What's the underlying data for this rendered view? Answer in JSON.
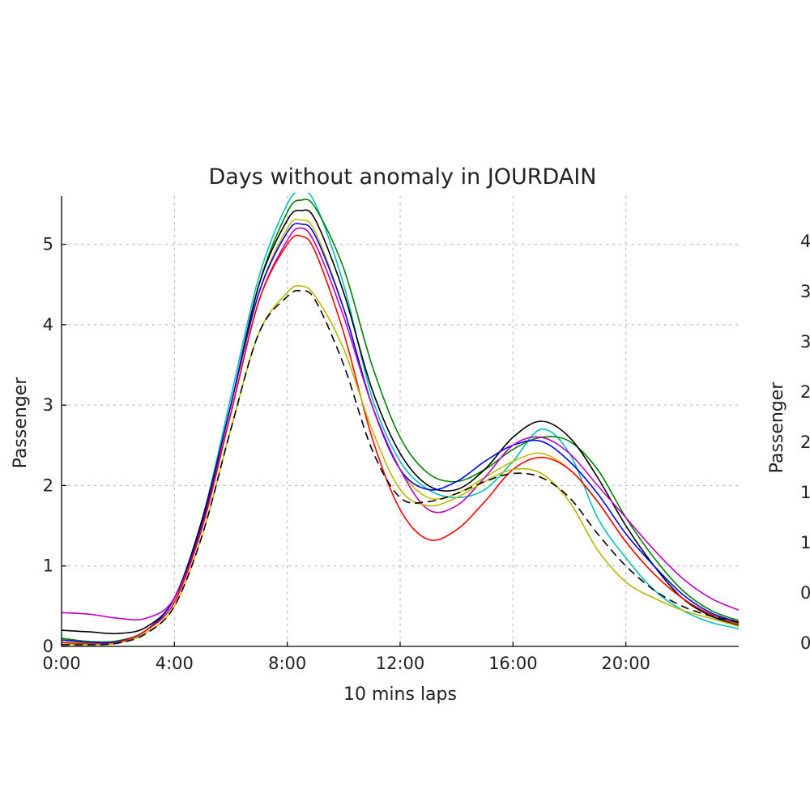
{
  "chart_data": [
    {
      "type": "line",
      "title": "Days without anomaly in JOURDAIN",
      "xlabel": "10 mins laps",
      "ylabel": "Passenger",
      "x_unit": "hour of day",
      "xlim": [
        0,
        24
      ],
      "ylim": [
        0,
        5.6
      ],
      "x_ticks": [
        0,
        4,
        8,
        12,
        16,
        20
      ],
      "x_tick_labels": [
        "0:00",
        "4:00",
        "8:00",
        "12:00",
        "16:00",
        "20:00"
      ],
      "y_ticks": [
        0,
        1,
        2,
        3,
        4,
        5
      ],
      "y_tick_labels": [
        "0",
        "1",
        "2",
        "3",
        "4",
        "5"
      ],
      "grid": true,
      "legend": "none",
      "x": [
        0,
        1,
        2,
        3,
        4,
        5,
        6,
        7,
        8,
        8.5,
        9,
        10,
        11,
        12,
        13,
        14,
        15,
        16,
        17,
        18,
        19,
        20,
        21,
        22,
        23,
        24
      ],
      "series": [
        {
          "color": "#00bfbf",
          "values": [
            0.05,
            0.03,
            0.05,
            0.2,
            0.6,
            1.6,
            3.1,
            4.6,
            5.5,
            5.65,
            5.5,
            4.5,
            3.1,
            2.3,
            1.95,
            1.85,
            1.95,
            2.3,
            2.7,
            2.4,
            1.6,
            1.1,
            0.7,
            0.45,
            0.3,
            0.22
          ]
        },
        {
          "color": "#008000",
          "values": [
            0.1,
            0.06,
            0.07,
            0.2,
            0.6,
            1.6,
            3.0,
            4.5,
            5.4,
            5.55,
            5.45,
            4.7,
            3.5,
            2.6,
            2.15,
            2.05,
            2.2,
            2.45,
            2.6,
            2.55,
            2.2,
            1.6,
            1.1,
            0.7,
            0.45,
            0.32
          ]
        },
        {
          "color": "#000000",
          "values": [
            0.2,
            0.18,
            0.16,
            0.24,
            0.6,
            1.6,
            3.0,
            4.5,
            5.3,
            5.42,
            5.3,
            4.4,
            3.2,
            2.4,
            2.0,
            1.95,
            2.2,
            2.6,
            2.8,
            2.6,
            2.1,
            1.5,
            1.0,
            0.6,
            0.38,
            0.26
          ]
        },
        {
          "color": "#bfbf00",
          "values": [
            0.05,
            0.04,
            0.06,
            0.2,
            0.6,
            1.55,
            3.0,
            4.4,
            5.2,
            5.3,
            5.15,
            4.2,
            3.0,
            2.2,
            1.85,
            1.9,
            2.1,
            2.3,
            2.4,
            2.2,
            1.8,
            1.3,
            0.9,
            0.6,
            0.4,
            0.28
          ]
        },
        {
          "color": "#0000ff",
          "values": [
            0.08,
            0.05,
            0.06,
            0.2,
            0.6,
            1.55,
            3.0,
            4.4,
            5.15,
            5.25,
            5.1,
            4.2,
            3.0,
            2.2,
            1.95,
            2.05,
            2.3,
            2.5,
            2.55,
            2.3,
            1.9,
            1.4,
            1.0,
            0.65,
            0.42,
            0.3
          ]
        },
        {
          "color": "#bf00bf",
          "values": [
            0.42,
            0.4,
            0.35,
            0.35,
            0.6,
            1.5,
            2.9,
            4.3,
            5.05,
            5.2,
            5.0,
            4.1,
            3.0,
            2.2,
            1.7,
            1.75,
            2.1,
            2.5,
            2.6,
            2.4,
            2.0,
            1.6,
            1.2,
            0.85,
            0.6,
            0.45
          ]
        },
        {
          "color": "#ff0000",
          "values": [
            0.05,
            0.03,
            0.05,
            0.2,
            0.55,
            1.5,
            2.9,
            4.3,
            5.0,
            5.1,
            4.9,
            3.9,
            2.6,
            1.7,
            1.33,
            1.45,
            1.8,
            2.2,
            2.35,
            2.2,
            1.8,
            1.3,
            0.9,
            0.6,
            0.4,
            0.28
          ]
        },
        {
          "color": "#b8b800",
          "values": [
            0.03,
            0.02,
            0.04,
            0.17,
            0.5,
            1.4,
            2.7,
            3.9,
            4.4,
            4.48,
            4.35,
            3.7,
            2.7,
            1.95,
            1.75,
            1.85,
            2.05,
            2.2,
            2.15,
            1.8,
            1.2,
            0.8,
            0.6,
            0.45,
            0.35,
            0.25
          ]
        },
        {
          "color": "#000000",
          "dashed": true,
          "values": [
            0.02,
            0.02,
            0.04,
            0.16,
            0.5,
            1.4,
            2.7,
            3.9,
            4.35,
            4.42,
            4.3,
            3.5,
            2.45,
            1.85,
            1.8,
            1.9,
            2.05,
            2.15,
            2.1,
            1.85,
            1.4,
            1.0,
            0.7,
            0.5,
            0.38,
            0.3
          ]
        }
      ]
    },
    {
      "type": "line",
      "title": "",
      "ylabel": "Passenger",
      "y_tick_labels_visible": [
        "4",
        "3",
        "3",
        "2",
        "2",
        "1",
        "1",
        "0",
        "0"
      ]
    }
  ]
}
